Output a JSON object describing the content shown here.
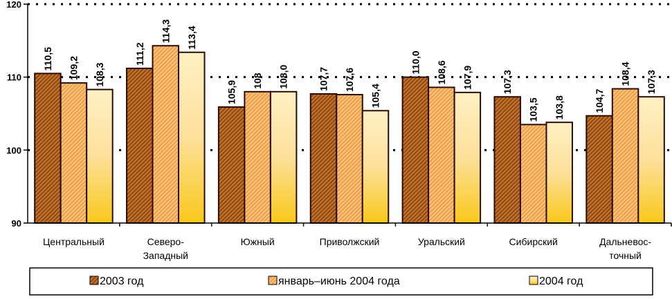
{
  "chart_data": {
    "type": "bar",
    "title": "",
    "xlabel": "",
    "ylabel": "",
    "ylim": [
      90,
      120
    ],
    "yticks": [
      "90",
      "100",
      "110",
      "120"
    ],
    "grid": "dotted horizontal at 100 and 110",
    "legend_position": "bottom",
    "categories": [
      [
        "Центральный"
      ],
      [
        "Северо-",
        "Западный"
      ],
      [
        "Южный"
      ],
      [
        "Приволжский"
      ],
      [
        "Уральский"
      ],
      [
        "Сибирский"
      ],
      [
        "Дальневос-",
        "точный"
      ]
    ],
    "series": [
      {
        "name": "2003 год",
        "values": [
          110.5,
          111.2,
          105.9,
          107.7,
          110.0,
          107.3,
          104.7
        ],
        "labels": [
          "110,5",
          "111,2",
          "105,9",
          "107,7",
          "110,0",
          "107,3",
          "104,7"
        ]
      },
      {
        "name": "январь–июнь 2004 года",
        "values": [
          109.2,
          114.3,
          108.0,
          107.6,
          108.6,
          103.5,
          108.4
        ],
        "labels": [
          "109,2",
          "114,3",
          "108",
          "107,6",
          "108,6",
          "103,5",
          "108,4"
        ]
      },
      {
        "name": "2004 год",
        "values": [
          108.3,
          113.4,
          108.0,
          105.4,
          107.9,
          103.8,
          107.3
        ],
        "labels": [
          "108,3",
          "113,4",
          "108,0",
          "105,4",
          "107,9",
          "103,8",
          "107,3"
        ]
      }
    ]
  }
}
